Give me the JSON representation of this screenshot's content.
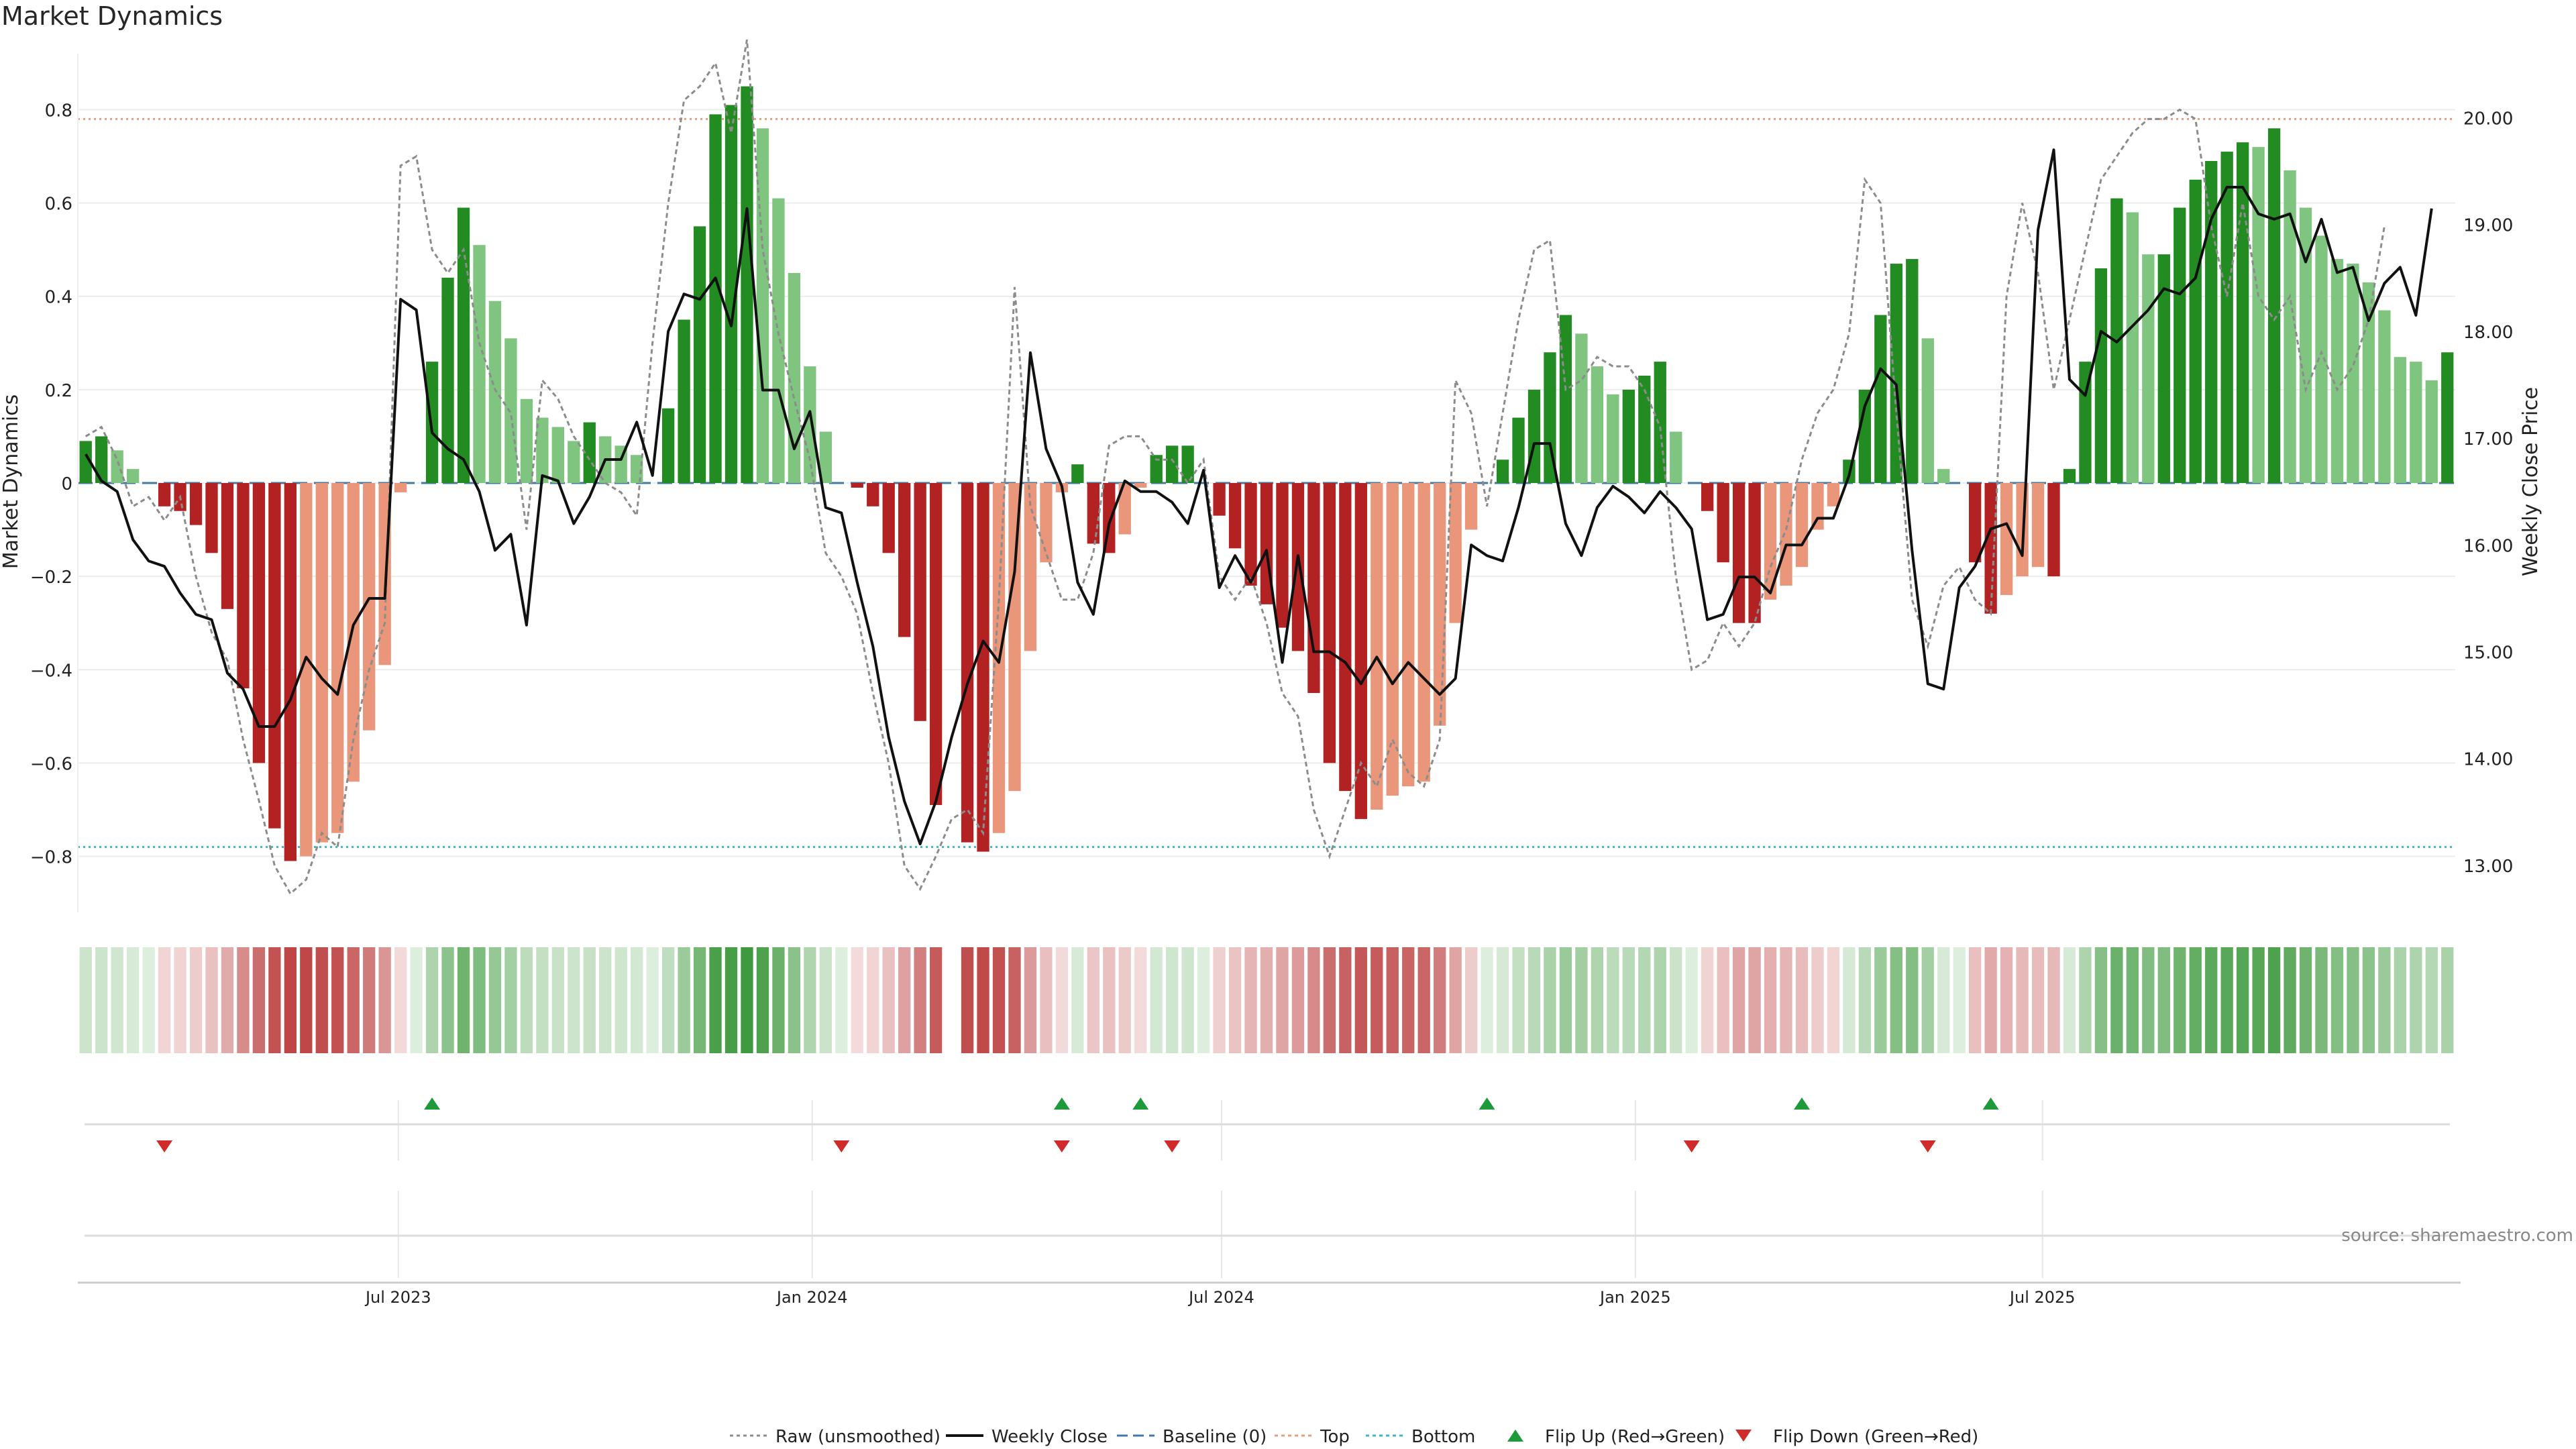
{
  "title": "Market Dynamics",
  "source": "source: sharemaestro.com",
  "axes": {
    "left_label": "Market Dynamics",
    "right_label": "Weekly Close Price",
    "left_ticks": [
      "−0.8",
      "−0.6",
      "−0.4",
      "−0.2",
      "0",
      "0.2",
      "0.4",
      "0.6",
      "0.8"
    ],
    "right_ticks": [
      "13.00",
      "14.00",
      "15.00",
      "16.00",
      "17.00",
      "18.00",
      "19.00",
      "20.00"
    ],
    "x_ticks": [
      "Jul 2023",
      "Jan 2024",
      "Jul 2024",
      "Jan 2025",
      "Jul 2025"
    ]
  },
  "legend": [
    {
      "label": "Raw (unsmoothed)",
      "style": "dotted",
      "color": "#8c8c8c"
    },
    {
      "label": "Weekly Close",
      "style": "solid",
      "color": "#111111"
    },
    {
      "label": "Baseline (0)",
      "style": "dashed",
      "color": "#4477aa"
    },
    {
      "label": "Top",
      "style": "dotted",
      "color": "#e8a07a"
    },
    {
      "label": "Bottom",
      "style": "dotted",
      "color": "#3fb6c8"
    },
    {
      "label": "Flip Up (Red→Green)",
      "style": "triangle-up",
      "color": "#1f9a3a"
    },
    {
      "label": "Flip Down (Green→Red)",
      "style": "triangle-down",
      "color": "#d12a2a"
    }
  ],
  "colors": {
    "strong_green": "#228b22",
    "light_green": "#7fc47f",
    "strong_red": "#b22222",
    "light_red": "#e9967a",
    "close": "#111111",
    "raw": "#8c8c8c",
    "baseline": "#4477aa",
    "top": "#e8a07a",
    "bottom": "#3fb6c8"
  },
  "chart_data": {
    "type": "bar",
    "x_start": "2023-02-12",
    "x_step_days": 7,
    "x_ticks": [
      "2023-07-01",
      "2024-01-01",
      "2024-07-01",
      "2025-01-01",
      "2025-07-01"
    ],
    "left_axis": {
      "label": "Market Dynamics",
      "ylim": [
        -0.92,
        0.92
      ]
    },
    "right_axis": {
      "label": "Weekly Close Price",
      "ylim": [
        12.56,
        20.6
      ]
    },
    "thresholds": {
      "baseline": 0,
      "top": 0.78,
      "bottom": -0.78
    },
    "series": [
      {
        "name": "Market Dynamics",
        "values": [
          0.09,
          0.1,
          0.07,
          0.03,
          0,
          -0.05,
          -0.06,
          -0.09,
          -0.15,
          -0.27,
          -0.44,
          -0.6,
          -0.74,
          -0.81,
          -0.8,
          -0.77,
          -0.75,
          -0.64,
          -0.53,
          -0.39,
          -0.02,
          0,
          0.26,
          0.44,
          0.59,
          0.51,
          0.39,
          0.31,
          0.18,
          0.14,
          0.12,
          0.09,
          0.13,
          0.1,
          0.08,
          0.06,
          0,
          0.16,
          0.35,
          0.55,
          0.79,
          0.81,
          0.85,
          0.76,
          0.61,
          0.45,
          0.25,
          0.11,
          0,
          -0.01,
          -0.05,
          -0.15,
          -0.33,
          -0.51,
          -0.69,
          0,
          -0.77,
          -0.79,
          -0.75,
          -0.66,
          -0.36,
          -0.17,
          -0.02,
          0.04,
          -0.13,
          -0.15,
          -0.11,
          -0.01,
          0.06,
          0.08,
          0.08,
          0,
          -0.07,
          -0.14,
          -0.22,
          -0.26,
          -0.31,
          -0.36,
          -0.45,
          -0.6,
          -0.66,
          -0.72,
          -0.7,
          -0.67,
          -0.65,
          -0.64,
          -0.52,
          -0.3,
          -0.1,
          0,
          0.05,
          0.14,
          0.2,
          0.28,
          0.36,
          0.32,
          0.25,
          0.19,
          0.2,
          0.23,
          0.26,
          0.11,
          0,
          -0.06,
          -0.17,
          -0.3,
          -0.3,
          -0.25,
          -0.22,
          -0.18,
          -0.1,
          -0.05,
          0.05,
          0.2,
          0.36,
          0.47,
          0.48,
          0.31,
          0.03,
          0,
          -0.17,
          -0.28,
          -0.24,
          -0.2,
          -0.18,
          -0.2,
          0.03,
          0.26,
          0.46,
          0.61,
          0.58,
          0.49,
          0.49,
          0.59,
          0.65,
          0.69,
          0.71,
          0.73,
          0.72,
          0.76,
          0.67,
          0.59,
          0.53,
          0.48,
          0.47,
          0.43,
          0.37,
          0.27,
          0.26,
          0.22,
          0.28
        ]
      },
      {
        "name": "Weekly Close",
        "values": [
          16.85,
          16.6,
          16.5,
          16.05,
          15.85,
          15.8,
          15.55,
          15.35,
          15.3,
          14.8,
          14.65,
          14.3,
          14.3,
          14.55,
          14.95,
          14.75,
          14.6,
          15.25,
          15.5,
          15.5,
          18.3,
          18.2,
          17.05,
          16.9,
          16.8,
          16.5,
          15.95,
          16.1,
          15.25,
          16.65,
          16.6,
          16.2,
          16.45,
          16.8,
          16.8,
          17.15,
          16.65,
          18.0,
          18.35,
          18.3,
          18.5,
          18.05,
          19.15,
          17.45,
          17.45,
          16.9,
          17.25,
          16.35,
          16.3,
          15.65,
          15.05,
          14.2,
          13.6,
          13.2,
          13.6,
          14.2,
          14.7,
          15.1,
          14.9,
          15.75,
          17.8,
          16.9,
          16.55,
          15.65,
          15.35,
          16.2,
          16.6,
          16.5,
          16.5,
          16.4,
          16.2,
          16.7,
          15.6,
          15.9,
          15.65,
          15.95,
          14.9,
          15.9,
          15.0,
          15.0,
          14.9,
          14.7,
          14.95,
          14.7,
          14.9,
          14.75,
          14.6,
          14.75,
          16.0,
          15.9,
          15.85,
          16.35,
          16.95,
          16.95,
          16.2,
          15.9,
          16.35,
          16.55,
          16.45,
          16.3,
          16.5,
          16.35,
          16.15,
          15.3,
          15.35,
          15.7,
          15.7,
          15.55,
          16.0,
          16.0,
          16.25,
          16.25,
          16.65,
          17.3,
          17.65,
          17.5,
          15.95,
          14.7,
          14.65,
          15.6,
          15.8,
          16.15,
          16.2,
          15.9,
          18.95,
          19.7,
          17.55,
          17.4,
          18.0,
          17.9,
          18.05,
          18.2,
          18.4,
          18.35,
          18.5,
          19.05,
          19.35,
          19.35,
          19.1,
          19.05,
          19.1,
          18.65,
          19.05,
          18.55,
          18.6,
          18.1,
          18.45,
          18.6,
          18.15,
          19.15
        ]
      },
      {
        "name": "Raw (unsmoothed)",
        "values": [
          0.1,
          0.12,
          0.05,
          -0.05,
          -0.03,
          -0.08,
          -0.03,
          -0.2,
          -0.32,
          -0.38,
          -0.55,
          -0.68,
          -0.82,
          -0.88,
          -0.85,
          -0.75,
          -0.78,
          -0.55,
          -0.4,
          -0.3,
          0.68,
          0.7,
          0.5,
          0.45,
          0.5,
          0.3,
          0.2,
          0.15,
          -0.1,
          0.22,
          0.18,
          0.1,
          0.05,
          0.0,
          -0.02,
          -0.07,
          0.3,
          0.6,
          0.82,
          0.85,
          0.9,
          0.75,
          0.95,
          0.5,
          0.32,
          0.18,
          0.05,
          -0.15,
          -0.2,
          -0.28,
          -0.45,
          -0.6,
          -0.82,
          -0.87,
          -0.8,
          -0.72,
          -0.7,
          -0.75,
          -0.25,
          0.42,
          -0.05,
          -0.15,
          -0.25,
          -0.25,
          -0.15,
          0.08,
          0.1,
          0.1,
          0.05,
          0.05,
          0.0,
          0.05,
          -0.2,
          -0.25,
          -0.2,
          -0.3,
          -0.45,
          -0.5,
          -0.7,
          -0.8,
          -0.7,
          -0.6,
          -0.65,
          -0.55,
          -0.62,
          -0.65,
          -0.55,
          0.22,
          0.15,
          -0.05,
          0.15,
          0.35,
          0.5,
          0.52,
          0.2,
          0.22,
          0.27,
          0.25,
          0.25,
          0.2,
          0.12,
          -0.2,
          -0.4,
          -0.38,
          -0.3,
          -0.35,
          -0.3,
          -0.18,
          -0.1,
          0.05,
          0.15,
          0.2,
          0.32,
          0.65,
          0.6,
          0.15,
          -0.25,
          -0.35,
          -0.22,
          -0.18,
          -0.25,
          -0.28,
          0.4,
          0.6,
          0.45,
          0.2,
          0.35,
          0.5,
          0.65,
          0.7,
          0.75,
          0.78,
          0.78,
          0.8,
          0.78,
          0.55,
          0.4,
          0.6,
          0.4,
          0.35,
          0.4,
          0.2,
          0.28,
          0.2,
          0.25,
          0.35,
          0.55
        ]
      },
      {
        "name": "Flip Up (Red→Green)",
        "values": [
          22,
          62,
          67,
          89,
          109,
          121
        ]
      },
      {
        "name": "Flip Down (Green→Red)",
        "values": [
          5,
          48,
          62,
          69,
          102,
          117
        ]
      }
    ]
  }
}
